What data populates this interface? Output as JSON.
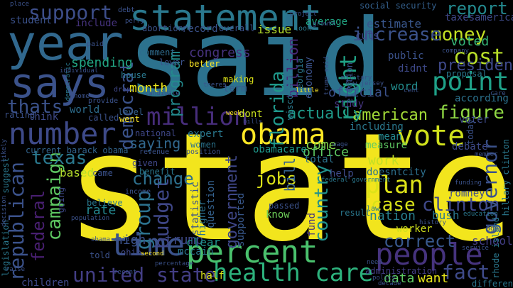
{
  "words": [
    {
      "text": "state",
      "color": "#f2e51d"
    },
    {
      "text": "said",
      "color": "#2c728e"
    },
    {
      "text": "year",
      "color": "#31688e"
    },
    {
      "text": "says",
      "color": "#3b528b"
    },
    {
      "text": "statement",
      "color": "#2a788e"
    },
    {
      "text": "support",
      "color": "#3d4e8a"
    },
    {
      "text": "percent",
      "color": "#4ac16d"
    },
    {
      "text": "obama",
      "color": "#fde725"
    },
    {
      "text": "number",
      "color": "#3e4a89"
    },
    {
      "text": "time",
      "color": "#3b528b"
    },
    {
      "text": "people",
      "color": "#46337e"
    },
    {
      "text": "vote",
      "color": "#d0e11c"
    },
    {
      "text": "health care",
      "color": "#2db27d"
    },
    {
      "text": "million",
      "color": "#472d7b"
    },
    {
      "text": "plan",
      "color": "#dde318"
    },
    {
      "text": "point",
      "color": "#1fa188"
    },
    {
      "text": "cost",
      "color": "#b8de29"
    },
    {
      "text": "money",
      "color": "#c2df23"
    },
    {
      "text": "increase",
      "color": "#3b528b"
    },
    {
      "text": "right",
      "color": "#20a386"
    },
    {
      "text": "united state",
      "color": "#433e85"
    },
    {
      "text": "american",
      "color": "#a2da37"
    },
    {
      "text": "figure",
      "color": "#8fd744"
    },
    {
      "text": "clinton",
      "color": "#3f4889"
    },
    {
      "text": "governor",
      "color": "#3b528b"
    },
    {
      "text": "report",
      "color": "#23898e"
    },
    {
      "text": "country",
      "color": "#21918c"
    },
    {
      "text": "fact",
      "color": "#3e4a89"
    },
    {
      "text": "campaign",
      "color": "#5ec962"
    },
    {
      "text": "republican",
      "color": "#3b528b"
    },
    {
      "text": "texas",
      "color": "#2a788e"
    },
    {
      "text": "florida",
      "color": "#1f988b"
    },
    {
      "text": "democrat",
      "color": "#3b528b"
    },
    {
      "text": "budget",
      "color": "#3f4788"
    },
    {
      "text": "group",
      "color": "#2c728e"
    },
    {
      "text": "program",
      "color": "#238a8d"
    },
    {
      "text": "change",
      "color": "#2d708e"
    },
    {
      "text": "jobs",
      "color": "#dde318"
    },
    {
      "text": "case",
      "color": "#d8e219"
    },
    {
      "text": "correct",
      "color": "#38588c"
    },
    {
      "text": "federal",
      "color": "#481f70"
    },
    {
      "text": "thats",
      "color": "#3b528b"
    },
    {
      "text": "actually",
      "color": "#1f9a8a"
    },
    {
      "text": "president",
      "color": "#3e4989"
    },
    {
      "text": "saying",
      "color": "#31688e"
    },
    {
      "text": "government",
      "color": "#3f4788"
    },
    {
      "text": "congress",
      "color": "#46327e"
    },
    {
      "text": "month",
      "color": "#ece51b"
    },
    {
      "text": "spending",
      "color": "#22a785"
    },
    {
      "text": "voted",
      "color": "#35b779"
    },
    {
      "text": "come",
      "color": "#84d44b"
    },
    {
      "text": "nation",
      "color": "#277f8e"
    },
    {
      "text": "work",
      "color": "#c0df25"
    },
    {
      "text": "bill",
      "color": "#34618d"
    },
    {
      "text": "billion",
      "color": "#482878"
    },
    {
      "text": "trump",
      "color": "#3e4989"
    },
    {
      "text": "high",
      "color": "#3b528b"
    },
    {
      "text": "clear",
      "color": "#1f948c"
    },
    {
      "text": "rate",
      "color": "#24868e"
    },
    {
      "text": "office",
      "color": "#5ec962"
    },
    {
      "text": "data",
      "color": "#5ec962"
    },
    {
      "text": "want",
      "color": "#e5e419"
    },
    {
      "text": "school",
      "color": "#433e85"
    },
    {
      "text": "according",
      "color": "#2c728e"
    },
    {
      "text": "issue",
      "color": "#b5de2b"
    },
    {
      "text": "debate",
      "color": "#3e4a89"
    },
    {
      "text": "bush",
      "color": "#2a778e"
    },
    {
      "text": "romney",
      "color": "#3e4c8a"
    },
    {
      "text": "estimate",
      "color": "#39568c"
    },
    {
      "text": "taxes",
      "color": "#3f4788"
    },
    {
      "text": "america",
      "color": "#3e4a89"
    },
    {
      "text": "economy",
      "color": "#3b528b"
    },
    {
      "text": "world",
      "color": "#2e6e8e"
    },
    {
      "text": "know",
      "color": "#6ece58"
    },
    {
      "text": "including",
      "color": "#2a788e"
    },
    {
      "text": "current barack obama",
      "color": "#32648e"
    },
    {
      "text": "based",
      "color": "#b5de2b"
    },
    {
      "text": "women",
      "color": "#2b748e"
    },
    {
      "text": "expert",
      "color": "#2a788e"
    },
    {
      "text": "national",
      "color": "#3f4788"
    },
    {
      "text": "went",
      "color": "#fde725"
    },
    {
      "text": "think",
      "color": "#3e4a89"
    },
    {
      "text": "level",
      "color": "#34608d"
    },
    {
      "text": "dont",
      "color": "#cae11f"
    },
    {
      "text": "term",
      "color": "#38598c"
    },
    {
      "text": "official",
      "color": "#3b528b"
    },
    {
      "text": "study",
      "color": "#453581"
    },
    {
      "text": "didnt",
      "color": "#3e4989"
    },
    {
      "text": "public",
      "color": "#3b528b"
    },
    {
      "text": "cuts",
      "color": "#3f4788"
    },
    {
      "text": "word",
      "color": "#228c8d"
    },
    {
      "text": "mean",
      "color": "#24878e"
    },
    {
      "text": "voter",
      "color": "#3e4a89"
    },
    {
      "text": "measure",
      "color": "#5ec962"
    },
    {
      "text": "total",
      "color": "#2c728e"
    },
    {
      "text": "city",
      "color": "#2d708e"
    },
    {
      "text": "doesnt",
      "color": "#2c718e"
    },
    {
      "text": "help",
      "color": "#3e4a89"
    },
    {
      "text": "worker",
      "color": "#d0e11c"
    },
    {
      "text": "administration",
      "color": "#433e85"
    },
    {
      "text": "different",
      "color": "#2a778e"
    },
    {
      "text": "children",
      "color": "#3e4989"
    },
    {
      "text": "half",
      "color": "#d8e219"
    },
    {
      "text": "mccain",
      "color": "#2a788e"
    },
    {
      "text": "question",
      "color": "#34618d"
    },
    {
      "text": "supported",
      "color": "#38588c"
    },
    {
      "text": "fund",
      "color": "#46337e"
    },
    {
      "text": "passed",
      "color": "#3b528b"
    },
    {
      "text": "statistic",
      "color": "#3b528b"
    },
    {
      "text": "higher",
      "color": "#2c718e"
    },
    {
      "text": "obamacare",
      "color": "#1f988b"
    },
    {
      "text": "record",
      "color": "#3b528b"
    },
    {
      "text": "include",
      "color": "#46337e"
    },
    {
      "text": "student",
      "color": "#3b528b"
    },
    {
      "text": "average",
      "color": "#22a785"
    },
    {
      "text": "social security",
      "color": "#34608d"
    },
    {
      "text": "georgia",
      "color": "#2a788e"
    },
    {
      "text": "wisconsin",
      "color": "#2a788e"
    },
    {
      "text": "abortion",
      "color": "#3b528b"
    },
    {
      "text": "overall",
      "color": "#3b528b"
    },
    {
      "text": "comment",
      "color": "#2f6c8e"
    },
    {
      "text": "better",
      "color": "#fde725"
    },
    {
      "text": "making",
      "color": "#dde318"
    },
    {
      "text": "lower",
      "color": "#3b528b"
    },
    {
      "text": "house",
      "color": "#2a788e"
    },
    {
      "text": "rating",
      "color": "#3b528b"
    },
    {
      "text": "benefit",
      "color": "#2a788e"
    },
    {
      "text": "given",
      "color": "#3f4788"
    },
    {
      "text": "came",
      "color": "#3b528b"
    },
    {
      "text": "suggest",
      "color": "#2a788e"
    },
    {
      "text": "legislation",
      "color": "#2a788e"
    },
    {
      "text": "going",
      "color": "#3e4989"
    },
    {
      "text": "believe",
      "color": "#2a788e"
    },
    {
      "text": "provide",
      "color": "#3b528b"
    },
    {
      "text": "result",
      "color": "#2a788e"
    },
    {
      "text": "hillary clinton",
      "color": "#2a788e"
    },
    {
      "text": "today",
      "color": "#3b528b"
    },
    {
      "text": "called",
      "color": "#3b528b"
    },
    {
      "text": "ohio",
      "color": "#3f4788"
    },
    {
      "text": "told",
      "color": "#3b528b"
    },
    {
      "text": "position",
      "color": "#3b528b"
    },
    {
      "text": "revenue",
      "color": "#3b528b"
    },
    {
      "text": "income",
      "color": "#3b528b"
    },
    {
      "text": "drop",
      "color": "#3f4788"
    },
    {
      "text": "proposal",
      "color": "#2a788e"
    },
    {
      "text": "rhode island",
      "color": "#2a788e"
    },
    {
      "text": "ago",
      "color": "#3b528b"
    },
    {
      "text": "law",
      "color": "#2a788e"
    },
    {
      "text": "paid",
      "color": "#3b528b"
    },
    {
      "text": "debt",
      "color": "#3b528b"
    },
    {
      "text": "project",
      "color": "#3b528b"
    },
    {
      "text": "federal government",
      "color": "#2a788e"
    },
    {
      "text": "little",
      "color": "#fde725"
    },
    {
      "text": "look",
      "color": "#2a788e"
    },
    {
      "text": "recent",
      "color": "#3b528b"
    },
    {
      "text": "obama said",
      "color": "#3b528b"
    },
    {
      "text": "percentage",
      "color": "#3b528b"
    },
    {
      "text": "second",
      "color": "#fde725"
    },
    {
      "text": "population",
      "color": "#3b528b"
    },
    {
      "text": "education",
      "color": "#2a788e"
    },
    {
      "text": "service",
      "color": "#3b528b"
    },
    {
      "text": "need",
      "color": "#3b528b"
    },
    {
      "text": "decade",
      "color": "#3b528b"
    },
    {
      "text": "policy",
      "color": "#3b528b"
    },
    {
      "text": "history",
      "color": "#3b528b"
    },
    {
      "text": "member",
      "color": "#3b528b"
    },
    {
      "text": "company",
      "color": "#3b528b"
    },
    {
      "text": "place",
      "color": "#3b528b"
    },
    {
      "text": "week",
      "color": "#fde725"
    },
    {
      "text": "candidate",
      "color": "#3b528b"
    },
    {
      "text": "election",
      "color": "#3b528b"
    },
    {
      "text": "democratic",
      "color": "#2a788e"
    },
    {
      "text": "individual",
      "color": "#3b528b"
    },
    {
      "text": "trump said",
      "color": "#3b528b"
    },
    {
      "text": "military",
      "color": "#3b528b"
    },
    {
      "text": "wage",
      "color": "#3b528b"
    },
    {
      "text": "funding",
      "color": "#3b528b"
    },
    {
      "text": "new jersey",
      "color": "#3b528b"
    },
    {
      "text": "theres",
      "color": "#3b528b"
    },
    {
      "text": "bills",
      "color": "#3b528b"
    },
    {
      "text": "growth",
      "color": "#3b528b"
    },
    {
      "text": "perry",
      "color": "#3b528b"
    },
    {
      "text": "home",
      "color": "#3b528b"
    },
    {
      "text": "cent",
      "color": "#3b528b"
    },
    {
      "text": "likely",
      "color": "#3b528b"
    },
    {
      "text": "decision",
      "color": "#3b528b"
    },
    {
      "text": "raise",
      "color": "#3b528b"
    },
    {
      "text": "care",
      "color": "#3b528b"
    }
  ]
}
